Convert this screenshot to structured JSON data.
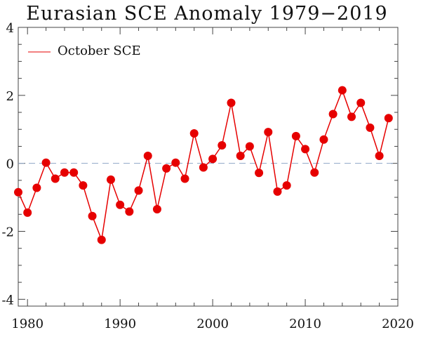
{
  "chart_data": {
    "type": "line",
    "title": "Eurasian SCE Anomaly 1979−2019",
    "xlabel": "",
    "ylabel": "",
    "xlim": [
      1979,
      2020
    ],
    "ylim": [
      -4.2,
      4
    ],
    "x_ticks": [
      1980,
      1990,
      2000,
      2010,
      2020
    ],
    "x_tick_labels": [
      "1980",
      "1990",
      "2000",
      "2010",
      "2020"
    ],
    "y_ticks": [
      -4,
      -2,
      0,
      2,
      4
    ],
    "y_tick_labels": [
      "-4",
      "-2",
      "0",
      "2",
      "4"
    ],
    "grid": false,
    "reference_line": {
      "y": 0,
      "style": "dashed",
      "color": "#8fa6c8"
    },
    "legend": {
      "placement": "top-left",
      "entries": [
        "October SCE"
      ]
    },
    "series": [
      {
        "name": "October SCE",
        "color": "#e60000",
        "marker": "circle",
        "x": [
          1979,
          1980,
          1981,
          1982,
          1983,
          1984,
          1985,
          1986,
          1987,
          1988,
          1989,
          1990,
          1991,
          1992,
          1993,
          1994,
          1995,
          1996,
          1997,
          1998,
          1999,
          2000,
          2001,
          2002,
          2003,
          2004,
          2005,
          2006,
          2007,
          2008,
          2009,
          2010,
          2011,
          2012,
          2013,
          2014,
          2015,
          2016,
          2017,
          2018,
          2019
        ],
        "values": [
          -0.85,
          -1.45,
          -0.72,
          0.02,
          -0.45,
          -0.27,
          -0.27,
          -0.65,
          -1.55,
          -2.25,
          -0.48,
          -1.22,
          -1.42,
          -0.8,
          0.22,
          -1.35,
          -0.15,
          0.02,
          -0.45,
          0.88,
          -0.12,
          0.13,
          0.53,
          1.78,
          0.22,
          0.5,
          -0.28,
          0.92,
          -0.83,
          -0.65,
          0.8,
          0.42,
          -0.27,
          0.7,
          1.45,
          2.15,
          1.37,
          1.78,
          1.05,
          0.22,
          1.33
        ]
      }
    ]
  }
}
